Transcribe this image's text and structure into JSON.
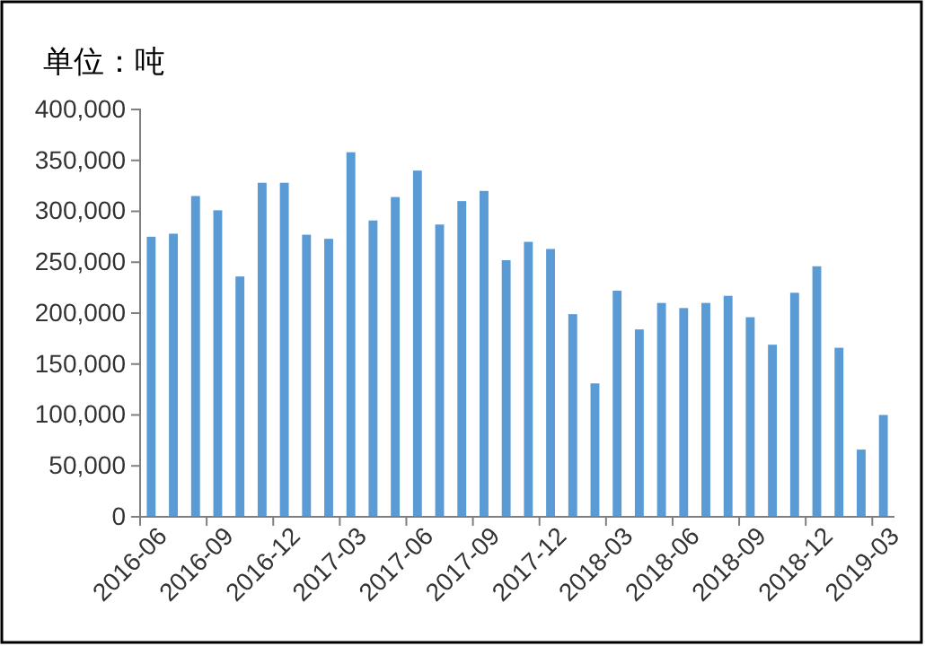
{
  "chart_data": {
    "type": "bar",
    "title": "单位：吨",
    "categories": [
      "2016-06",
      null,
      null,
      "2016-09",
      null,
      null,
      "2016-12",
      null,
      null,
      "2017-03",
      null,
      null,
      "2017-06",
      null,
      null,
      "2017-09",
      null,
      null,
      "2017-12",
      null,
      null,
      "2018-03",
      null,
      null,
      "2018-06",
      null,
      null,
      "2018-09",
      null,
      null,
      "2018-12",
      null,
      null,
      "2019-03"
    ],
    "values": [
      275000,
      278000,
      315000,
      301000,
      236000,
      328000,
      328000,
      277000,
      273000,
      358000,
      291000,
      314000,
      340000,
      287000,
      310000,
      320000,
      252000,
      270000,
      263000,
      199000,
      131000,
      222000,
      184000,
      210000,
      205000,
      210000,
      217000,
      196000,
      169000,
      220000,
      246000,
      166000,
      66000,
      100000
    ],
    "color": "#5b9bd5",
    "ylim": [
      0,
      400000
    ],
    "yticks": [
      {
        "value": 0,
        "label": "0"
      },
      {
        "value": 50000,
        "label": "50,000"
      },
      {
        "value": 100000,
        "label": "100,000"
      },
      {
        "value": 150000,
        "label": "150,000"
      },
      {
        "value": 200000,
        "label": "200,000"
      },
      {
        "value": 250000,
        "label": "250,000"
      },
      {
        "value": 300000,
        "label": "300,000"
      },
      {
        "value": 350000,
        "label": "350,000"
      },
      {
        "value": 400000,
        "label": "400,000"
      }
    ],
    "grid": false
  }
}
